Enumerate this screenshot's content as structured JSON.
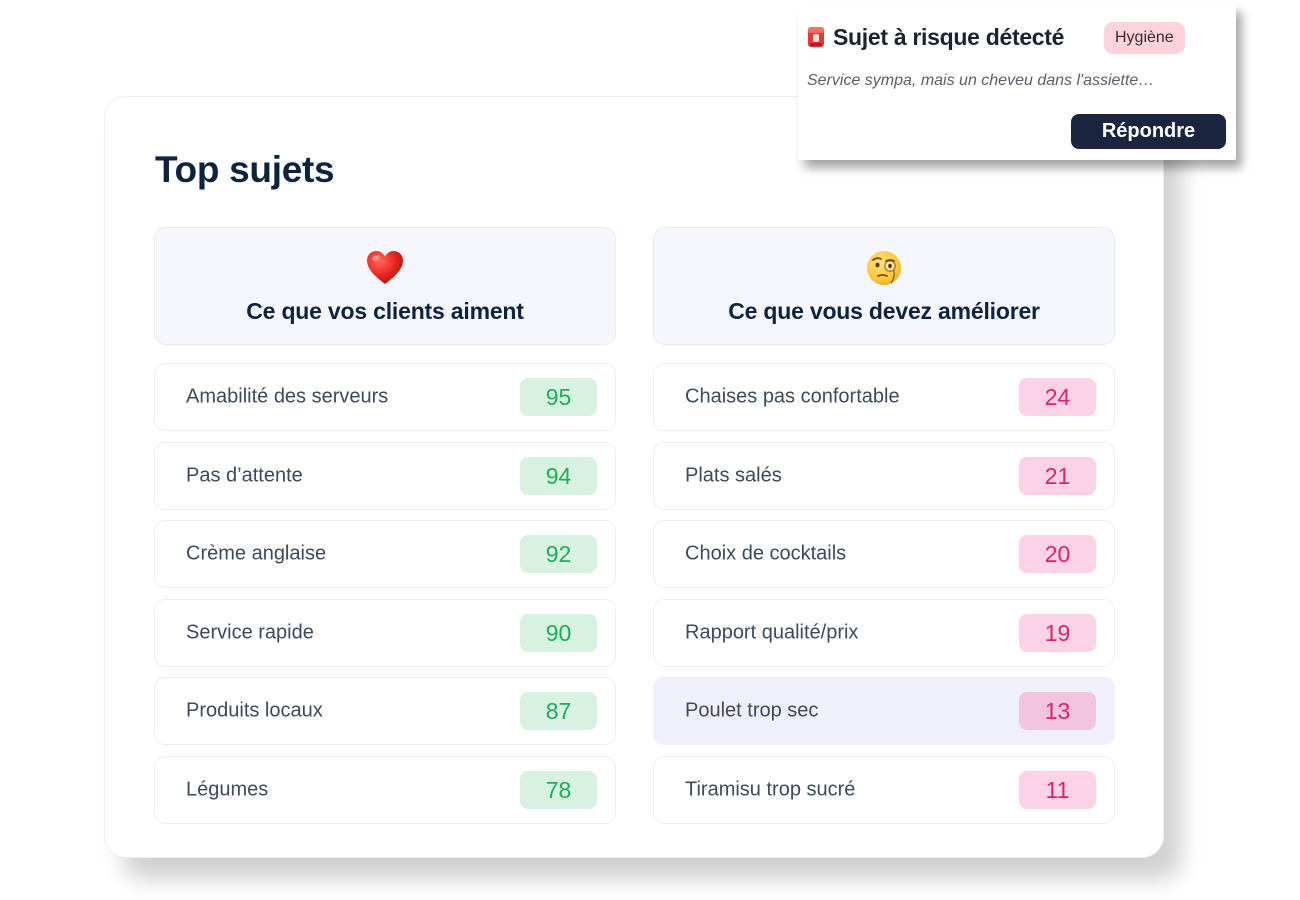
{
  "card": {
    "title": "Top sujets"
  },
  "likes": {
    "icon": "heart-icon",
    "title": "Ce que vos clients aiment",
    "color_bg": "#d7f2e1",
    "color_text": "#1fae5a",
    "items": [
      {
        "label": "Amabilité des serveurs",
        "value": "95"
      },
      {
        "label": "Pas d’attente",
        "value": "94"
      },
      {
        "label": "Crème anglaise",
        "value": "92"
      },
      {
        "label": "Service rapide",
        "value": "90"
      },
      {
        "label": "Produits locaux",
        "value": "87"
      },
      {
        "label": "Légumes",
        "value": "78"
      }
    ]
  },
  "improve": {
    "icon": "monocle-face-icon",
    "title": "Ce que vous devez améliorer",
    "color_bg": "#fcd3e6",
    "color_text": "#e0206e",
    "highlighted_item": "Poulet trop sec",
    "items": [
      {
        "label": "Chaises pas confortable",
        "value": "24"
      },
      {
        "label": "Plats salés",
        "value": "21"
      },
      {
        "label": "Choix de cocktails",
        "value": "20"
      },
      {
        "label": "Rapport qualité/prix",
        "value": "19"
      },
      {
        "label": "Poulet trop sec",
        "value": "13"
      },
      {
        "label": "Tiramisu trop sucré",
        "value": "11"
      }
    ]
  },
  "alert": {
    "icon": "alert-siren-icon",
    "title": "Sujet à risque détecté",
    "badge": "Hygiène",
    "text": "Service sympa, mais un cheveu dans l'assiette…",
    "button_label": "Répondre",
    "button_color": "#1c2540"
  }
}
